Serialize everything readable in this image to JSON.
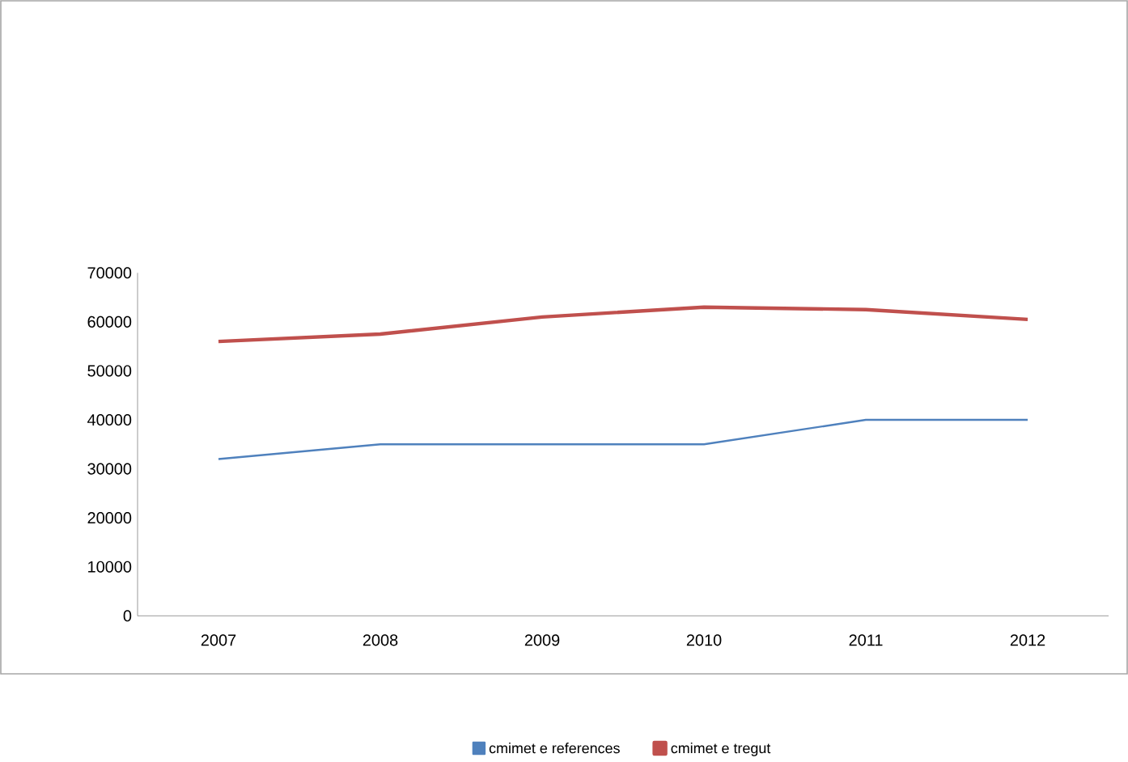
{
  "chart_data": {
    "type": "line",
    "categories": [
      "2007",
      "2008",
      "2009",
      "2010",
      "2011",
      "2012"
    ],
    "series": [
      {
        "name": "cmimet e references",
        "color": "#4f81bd",
        "values": [
          32000,
          35000,
          35000,
          35000,
          40000,
          40000
        ]
      },
      {
        "name": "cmimet e tregut",
        "color": "#c0504d",
        "values": [
          56000,
          57500,
          61000,
          63000,
          62500,
          60500
        ]
      }
    ],
    "ylim": [
      0,
      70000
    ],
    "yticks": [
      0,
      10000,
      20000,
      30000,
      40000,
      50000,
      60000,
      70000
    ],
    "legend": "bottom",
    "grid": false,
    "marker": "none"
  }
}
